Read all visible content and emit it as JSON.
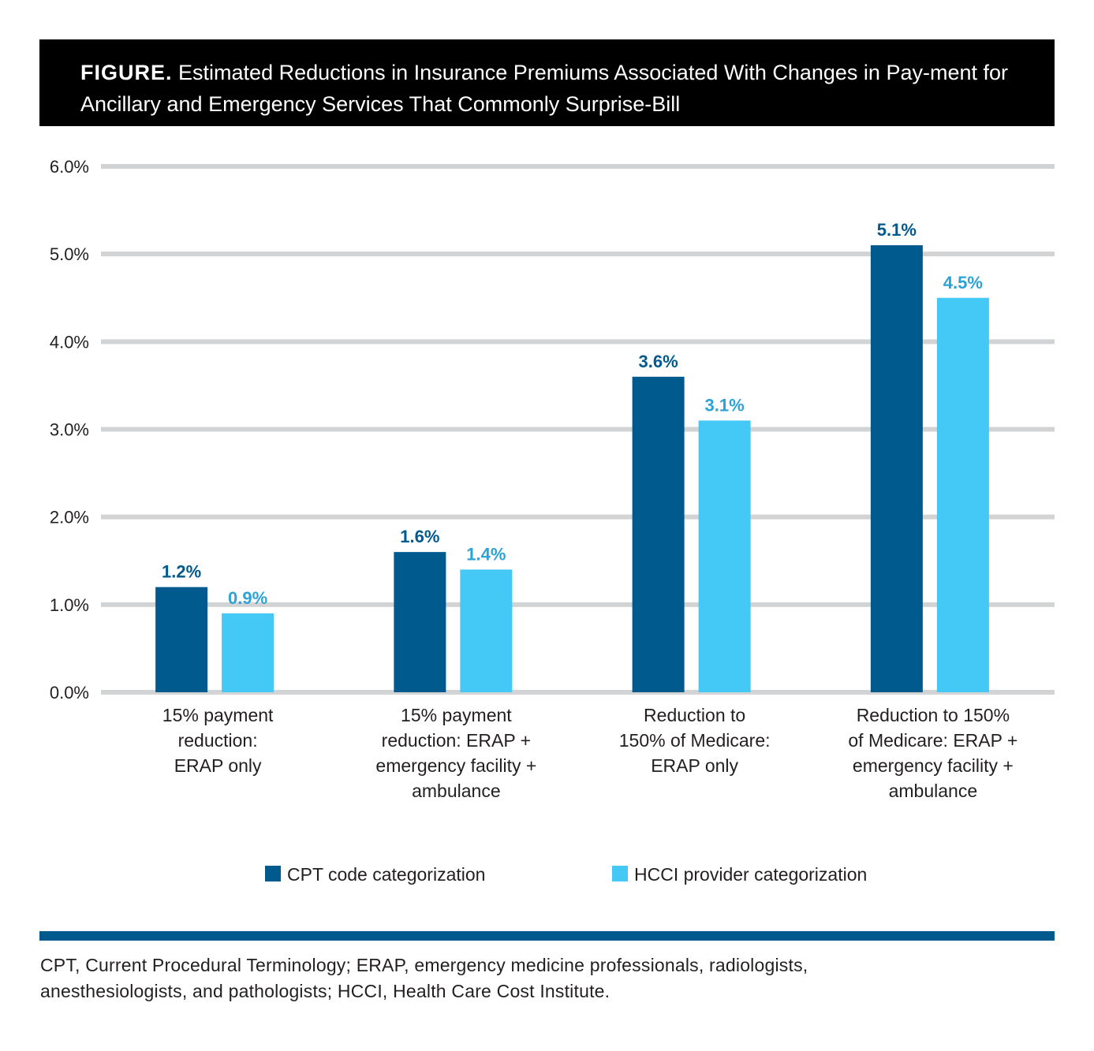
{
  "figure": {
    "label": "FIGURE.",
    "title": "Estimated Reductions in Insurance Premiums Associated With Changes in Pay-ment for Ancillary and Emergency Services That Commonly Surprise-Bill"
  },
  "chart_data": {
    "type": "bar",
    "categories": [
      [
        "15% payment",
        "reduction:",
        "ERAP only"
      ],
      [
        "15% payment",
        "reduction: ERAP +",
        "emergency facility +",
        "ambulance"
      ],
      [
        "Reduction to",
        "150% of Medicare:",
        "ERAP only"
      ],
      [
        "Reduction to 150%",
        "of Medicare: ERAP +",
        "emergency facility +",
        "ambulance"
      ]
    ],
    "series": [
      {
        "name": "CPT code categorization",
        "color": "#005a8d",
        "label_color": "#005a8d",
        "values": [
          1.2,
          1.6,
          3.6,
          5.1
        ],
        "labels": [
          "1.2%",
          "1.6%",
          "3.6%",
          "5.1%"
        ]
      },
      {
        "name": "HCCI provider categorization",
        "color": "#44c8f5",
        "label_color": "#2ba3d6",
        "values": [
          0.9,
          1.4,
          3.1,
          4.5
        ],
        "labels": [
          "0.9%",
          "1.4%",
          "3.1%",
          "4.5%"
        ]
      }
    ],
    "yticks": [
      "0.0%",
      "1.0%",
      "2.0%",
      "3.0%",
      "4.0%",
      "5.0%",
      "6.0%"
    ],
    "ylim": [
      0,
      6
    ],
    "xlabel": "",
    "ylabel": "",
    "grid": true,
    "grid_color": "#d1d3d4",
    "legend_position": "bottom-center"
  },
  "footnote": {
    "lines": [
      "CPT, Current Procedural Terminology; ERAP, emergency medicine professionals, radiologists,",
      "anesthesiologists, and pathologists; HCCI, Health Care Cost Institute."
    ]
  },
  "colors": {
    "header_bg": "#000000",
    "rule": "#005a8d"
  }
}
